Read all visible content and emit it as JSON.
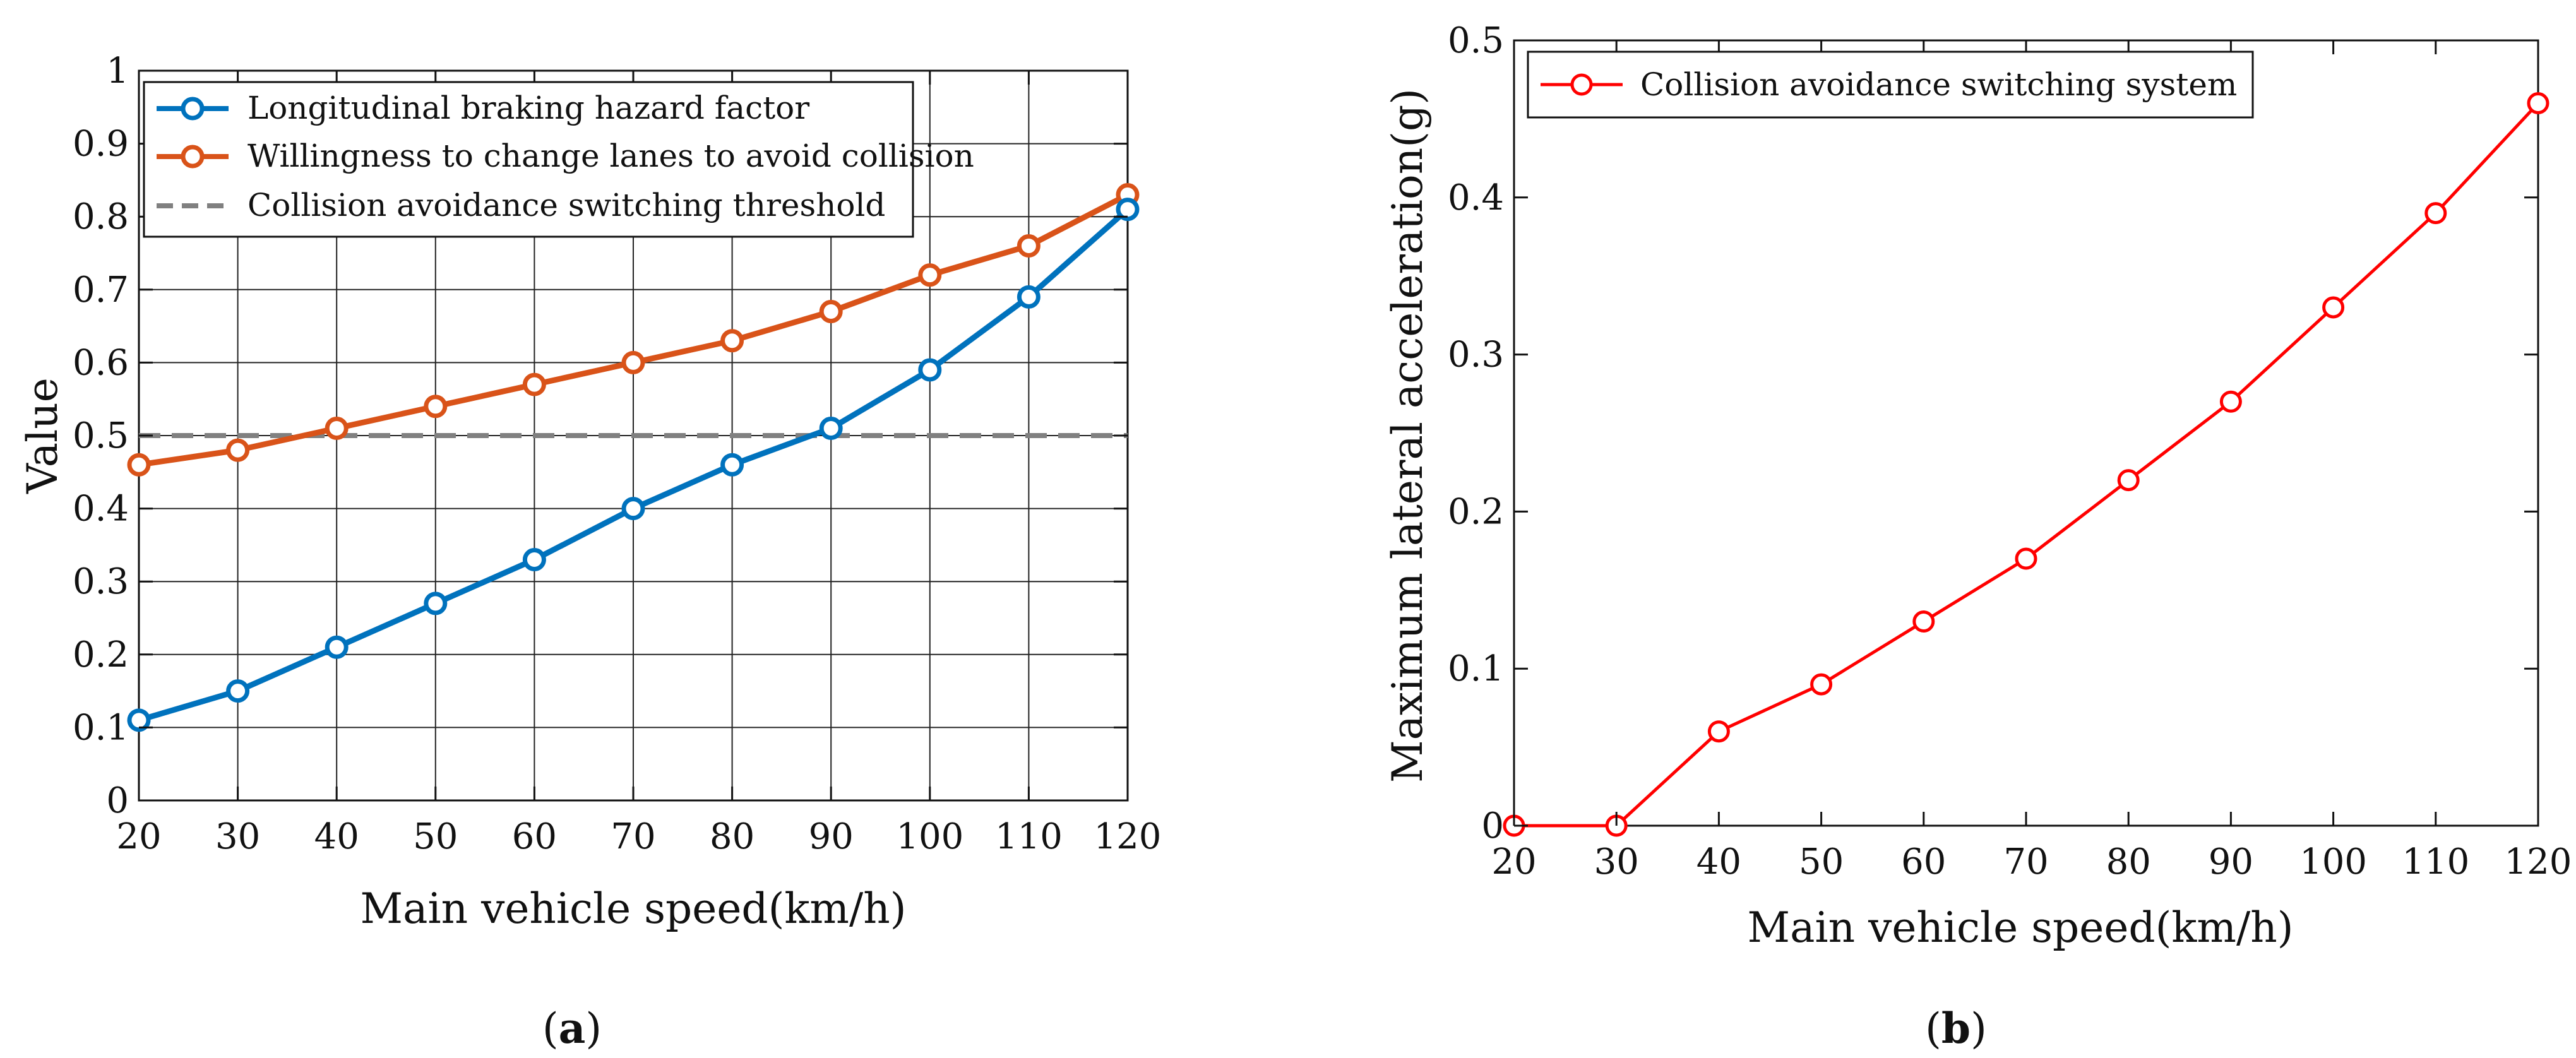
{
  "chart_data": [
    {
      "panel_label": "(a)",
      "panel_letter": "a",
      "type": "line",
      "title": "",
      "xlabel": "Main vehicle speed(km/h)",
      "ylabel": "Value",
      "x": [
        20,
        30,
        40,
        50,
        60,
        70,
        80,
        90,
        100,
        110,
        120
      ],
      "xlim": [
        20,
        120
      ],
      "ylim": [
        0,
        1
      ],
      "xticks": [
        "20",
        "30",
        "40",
        "50",
        "60",
        "70",
        "80",
        "90",
        "100",
        "110",
        "120"
      ],
      "yticks": [
        "0",
        "0.1",
        "0.2",
        "0.3",
        "0.4",
        "0.5",
        "0.6",
        "0.7",
        "0.8",
        "0.9",
        "1"
      ],
      "legend_position": "top-left",
      "series": [
        {
          "name": "Longitudinal braking hazard factor",
          "color": "#0072BD",
          "style": "solid-marker",
          "values": [
            0.11,
            0.15,
            0.21,
            0.27,
            0.33,
            0.4,
            0.46,
            0.51,
            0.59,
            0.69,
            0.81
          ]
        },
        {
          "name": "Willingness to change lanes to avoid collision",
          "color": "#D95319",
          "style": "solid-marker",
          "values": [
            0.46,
            0.48,
            0.51,
            0.54,
            0.57,
            0.6,
            0.63,
            0.67,
            0.72,
            0.76,
            0.83
          ]
        },
        {
          "name": "Collision avoidance switching threshold",
          "color": "#808080",
          "style": "dashed",
          "values": [
            0.5,
            0.5,
            0.5,
            0.5,
            0.5,
            0.5,
            0.5,
            0.5,
            0.5,
            0.5,
            0.5
          ]
        }
      ]
    },
    {
      "panel_label": "(b)",
      "panel_letter": "b",
      "type": "line",
      "title": "",
      "xlabel": "Main vehicle speed(km/h)",
      "ylabel": "Maximum lateral acceleration(g)",
      "x": [
        20,
        30,
        40,
        50,
        60,
        70,
        80,
        90,
        100,
        110,
        120
      ],
      "xlim": [
        20,
        120
      ],
      "ylim": [
        0,
        0.5
      ],
      "xticks": [
        "20",
        "30",
        "40",
        "50",
        "60",
        "70",
        "80",
        "90",
        "100",
        "110",
        "120"
      ],
      "yticks": [
        "0",
        "0.1",
        "0.2",
        "0.3",
        "0.4",
        "0.5"
      ],
      "legend_position": "top-left",
      "series": [
        {
          "name": "Collision avoidance switching system",
          "color": "#FF0000",
          "style": "solid-marker",
          "values": [
            0,
            0,
            0.06,
            0.09,
            0.13,
            0.17,
            0.22,
            0.27,
            0.33,
            0.39,
            0.46
          ]
        }
      ]
    }
  ]
}
